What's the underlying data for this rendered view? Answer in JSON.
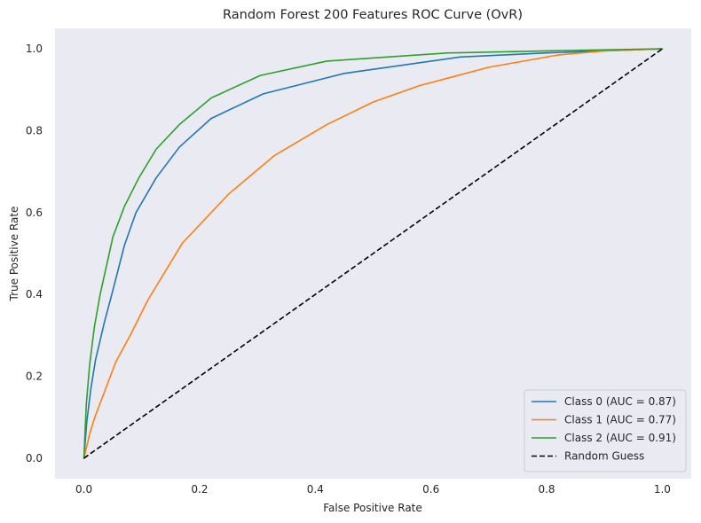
{
  "chart_data": {
    "type": "line",
    "title": "Random Forest 200 Features ROC Curve (OvR)",
    "xlabel": "False Positive Rate",
    "ylabel": "True Positive Rate",
    "xlim": [
      -0.05,
      1.05
    ],
    "ylim": [
      -0.05,
      1.05
    ],
    "xticks": [
      "0.0",
      "0.2",
      "0.4",
      "0.6",
      "0.8",
      "1.0"
    ],
    "yticks": [
      "0.0",
      "0.2",
      "0.4",
      "0.6",
      "0.8",
      "1.0"
    ],
    "grid": false,
    "background": "#eaeaf2",
    "legend_position": "lower-right",
    "series": [
      {
        "name": "Class 0 (AUC = 0.87)",
        "color": "#1f77b4",
        "dash": "solid",
        "points": [
          [
            0,
            0
          ],
          [
            0.005,
            0.09
          ],
          [
            0.012,
            0.17
          ],
          [
            0.02,
            0.24
          ],
          [
            0.035,
            0.33
          ],
          [
            0.05,
            0.41
          ],
          [
            0.07,
            0.52
          ],
          [
            0.09,
            0.6
          ],
          [
            0.125,
            0.685
          ],
          [
            0.165,
            0.76
          ],
          [
            0.22,
            0.83
          ],
          [
            0.31,
            0.89
          ],
          [
            0.45,
            0.94
          ],
          [
            0.65,
            0.98
          ],
          [
            0.8,
            0.99
          ],
          [
            1.0,
            1.0
          ]
        ]
      },
      {
        "name": "Class 1 (AUC = 0.77)",
        "color": "#ff7f0e",
        "dash": "solid",
        "points": [
          [
            0,
            0
          ],
          [
            0.01,
            0.06
          ],
          [
            0.02,
            0.105
          ],
          [
            0.035,
            0.16
          ],
          [
            0.055,
            0.235
          ],
          [
            0.08,
            0.3
          ],
          [
            0.11,
            0.385
          ],
          [
            0.17,
            0.525
          ],
          [
            0.25,
            0.645
          ],
          [
            0.33,
            0.74
          ],
          [
            0.42,
            0.815
          ],
          [
            0.5,
            0.87
          ],
          [
            0.58,
            0.91
          ],
          [
            0.7,
            0.955
          ],
          [
            0.82,
            0.985
          ],
          [
            0.9,
            0.995
          ],
          [
            1.0,
            1.0
          ]
        ]
      },
      {
        "name": "Class 2 (AUC = 0.91)",
        "color": "#2ca02c",
        "dash": "solid",
        "points": [
          [
            0,
            0
          ],
          [
            0.004,
            0.13
          ],
          [
            0.01,
            0.23
          ],
          [
            0.018,
            0.32
          ],
          [
            0.028,
            0.4
          ],
          [
            0.05,
            0.54
          ],
          [
            0.07,
            0.615
          ],
          [
            0.095,
            0.685
          ],
          [
            0.125,
            0.755
          ],
          [
            0.165,
            0.815
          ],
          [
            0.22,
            0.88
          ],
          [
            0.305,
            0.935
          ],
          [
            0.42,
            0.97
          ],
          [
            0.63,
            0.99
          ],
          [
            0.8,
            0.995
          ],
          [
            1.0,
            1.0
          ]
        ]
      },
      {
        "name": "Random Guess",
        "color": "#000000",
        "dash": "dashed",
        "points": [
          [
            0,
            0
          ],
          [
            1,
            1
          ]
        ]
      }
    ]
  }
}
